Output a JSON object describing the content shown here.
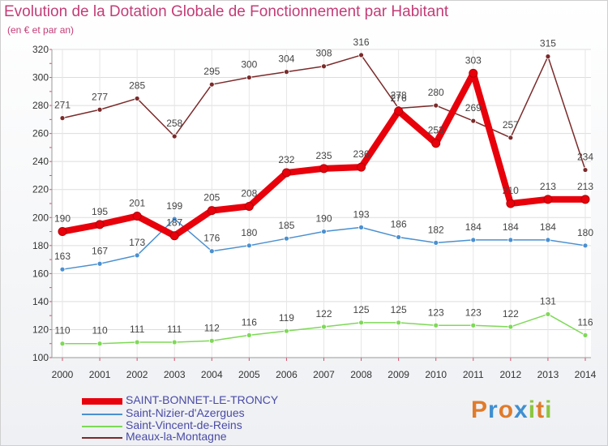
{
  "chart_data": {
    "type": "line",
    "title": "Evolution de la Dotation Globale de Fonctionnement par Habitant",
    "subtitle": "(en € et par an)",
    "x": [
      "2000",
      "2001",
      "2002",
      "2003",
      "2004",
      "2005",
      "2006",
      "2007",
      "2008",
      "2009",
      "2010",
      "2011",
      "2012",
      "2013",
      "2014"
    ],
    "ylim": [
      100,
      320
    ],
    "yticks": [
      100,
      120,
      140,
      160,
      180,
      200,
      220,
      240,
      260,
      280,
      300,
      320
    ],
    "grid": true,
    "legend_position": "bottom-left",
    "series": [
      {
        "name": "SAINT-BONNET-LE-TRONCY",
        "color": "#e8000b",
        "values": [
          190,
          195,
          201,
          187,
          205,
          208,
          232,
          235,
          236,
          276,
          253,
          303,
          210,
          213,
          213
        ]
      },
      {
        "name": "Saint-Nizier-d'Azergues",
        "color": "#4a90d0",
        "values": [
          163,
          167,
          173,
          199,
          176,
          180,
          185,
          190,
          193,
          186,
          182,
          184,
          184,
          184,
          180
        ]
      },
      {
        "name": "Saint-Vincent-de-Reins",
        "color": "#7ed957",
        "values": [
          110,
          110,
          111,
          111,
          112,
          116,
          119,
          122,
          125,
          125,
          123,
          123,
          122,
          131,
          116
        ]
      },
      {
        "name": "Meaux-la-Montagne",
        "color": "#7b2a2a",
        "values": [
          271,
          277,
          285,
          258,
          295,
          300,
          304,
          308,
          316,
          278,
          280,
          269,
          257,
          315,
          234
        ]
      }
    ]
  },
  "brand": {
    "letters": [
      "P",
      "r",
      "o",
      "x",
      "i",
      "t",
      "i"
    ],
    "colors": [
      "#e07b2b",
      "#3f8fd0",
      "#e07b2b",
      "#3f8fd0",
      "#8cc63f",
      "#e07b2b",
      "#8cc63f"
    ]
  }
}
